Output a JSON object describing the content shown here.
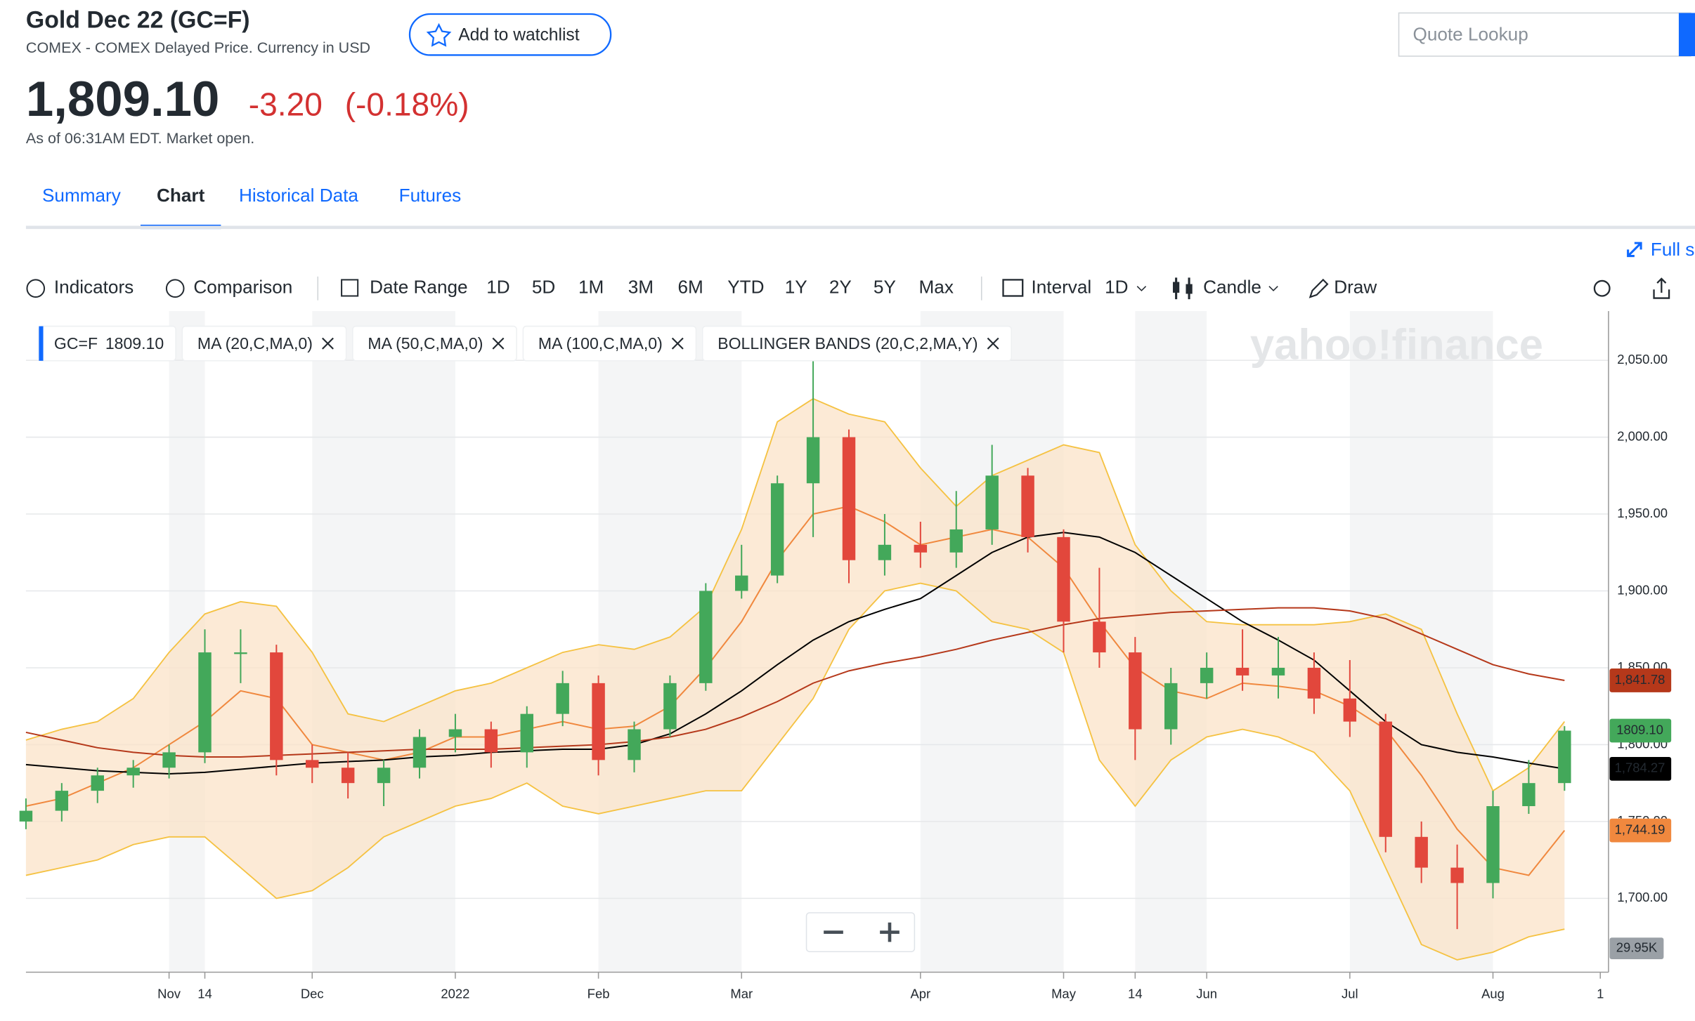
{
  "header": {
    "title": "Gold Dec 22 (GC=F)",
    "subtitle": "COMEX - COMEX Delayed Price. Currency in USD",
    "watchlist_button": "Add to watchlist",
    "search_placeholder": "Quote Lookup",
    "price": "1,809.10",
    "change": "-3.20",
    "change_percent": "(-0.18%)",
    "timestamp": "As of 06:31AM EDT. Market open."
  },
  "tabs": [
    "Summary",
    "Chart",
    "Historical Data",
    "Futures"
  ],
  "active_tab": "Chart",
  "toolbar": {
    "full_screen": "Full s",
    "indicators": "Indicators",
    "comparison": "Comparison",
    "date_range": "Date Range",
    "ranges": [
      "1D",
      "5D",
      "1M",
      "3M",
      "6M",
      "YTD",
      "1Y",
      "2Y",
      "5Y",
      "Max"
    ],
    "interval_label": "Interval",
    "interval": "1D",
    "chart_style": "Candle",
    "draw": "Draw"
  },
  "chart_data": {
    "type": "candlestick",
    "watermark": "yahoo!finance",
    "symbol": "GC=F",
    "price_label": "1809.10",
    "volume_label": "29.95K",
    "up_color": "#43a85a",
    "down_color": "#e2473c",
    "categories": [
      null,
      null,
      null,
      null,
      "Nov",
      "14",
      null,
      null,
      "Dec",
      null,
      null,
      null,
      "2022",
      null,
      null,
      null,
      "Feb",
      null,
      null,
      null,
      "Mar",
      null,
      null,
      null,
      null,
      "Apr",
      null,
      null,
      null,
      "May",
      null,
      "14",
      null,
      "Jun",
      null,
      null,
      null,
      "Jul",
      null,
      null,
      null,
      "Aug",
      null,
      null,
      "1"
    ],
    "open": [
      1750,
      1757,
      1770,
      1780,
      1785,
      1795,
      1860,
      1860,
      1790,
      1785,
      1775,
      1785,
      1805,
      1810,
      1795,
      1820,
      1840,
      1790,
      1810,
      1840,
      1900,
      1910,
      1970,
      2000,
      1920,
      1930,
      1925,
      1940,
      1975,
      1935,
      1880,
      1860,
      1810,
      1840,
      1850,
      1845,
      1850,
      1830,
      1815,
      1740,
      1720,
      1710,
      1760,
      1775,
      null
    ],
    "high": [
      1765,
      1775,
      1785,
      1790,
      1800,
      1875,
      1875,
      1865,
      1800,
      1795,
      1790,
      1810,
      1820,
      1815,
      1825,
      1848,
      1845,
      1815,
      1845,
      1905,
      1930,
      1975,
      2050,
      2005,
      1950,
      1945,
      1965,
      1995,
      1980,
      1940,
      1915,
      1870,
      1850,
      1860,
      1875,
      1870,
      1860,
      1855,
      1820,
      1750,
      1735,
      1770,
      1790,
      1812,
      null
    ],
    "low": [
      1745,
      1750,
      1762,
      1772,
      1778,
      1788,
      1840,
      1780,
      1775,
      1765,
      1760,
      1778,
      1795,
      1785,
      1785,
      1812,
      1780,
      1782,
      1805,
      1835,
      1895,
      1905,
      1935,
      1905,
      1910,
      1915,
      1915,
      1930,
      1925,
      1860,
      1850,
      1790,
      1800,
      1830,
      1835,
      1830,
      1820,
      1805,
      1730,
      1710,
      1680,
      1700,
      1755,
      1770,
      null
    ],
    "close": [
      1757,
      1770,
      1780,
      1785,
      1795,
      1860,
      1860,
      1790,
      1785,
      1775,
      1785,
      1805,
      1810,
      1795,
      1820,
      1840,
      1790,
      1810,
      1840,
      1900,
      1910,
      1970,
      2000,
      1920,
      1930,
      1925,
      1940,
      1975,
      1935,
      1880,
      1860,
      1810,
      1840,
      1850,
      1845,
      1850,
      1830,
      1815,
      1740,
      1720,
      1710,
      1760,
      1775,
      1809.1,
      null
    ],
    "series": [
      {
        "name": "MA (20,C,MA,0)",
        "color": "#f0883e",
        "value_label": "1,744.19",
        "values": [
          1760,
          1765,
          1775,
          1785,
          1800,
          1815,
          1835,
          1830,
          1800,
          1795,
          1790,
          1795,
          1805,
          1805,
          1810,
          1815,
          1810,
          1812,
          1825,
          1850,
          1880,
          1920,
          1950,
          1955,
          1945,
          1930,
          1935,
          1940,
          1935,
          1915,
          1880,
          1850,
          1835,
          1830,
          1840,
          1838,
          1835,
          1825,
          1810,
          1780,
          1745,
          1720,
          1715,
          1744.19,
          null
        ]
      },
      {
        "name": "MA (50,C,MA,0)",
        "color": "#000000",
        "value_label": "1,784.27",
        "values": [
          1787,
          1785,
          1783,
          1782,
          1781,
          1782,
          1784,
          1786,
          1788,
          1789,
          1790,
          1792,
          1793,
          1795,
          1796,
          1797,
          1797,
          1800,
          1807,
          1820,
          1835,
          1852,
          1868,
          1880,
          1888,
          1895,
          1910,
          1925,
          1935,
          1938,
          1935,
          1925,
          1910,
          1895,
          1880,
          1868,
          1855,
          1835,
          1815,
          1800,
          1795,
          1792,
          1788,
          1784.27,
          null
        ]
      },
      {
        "name": "MA (100,C,MA,0)",
        "color": "#b5381a",
        "value_label": "1,841.78",
        "values": [
          1808,
          1803,
          1798,
          1795,
          1793,
          1792,
          1792,
          1793,
          1794,
          1795,
          1796,
          1797,
          1797,
          1797,
          1798,
          1799,
          1800,
          1802,
          1805,
          1810,
          1818,
          1828,
          1840,
          1848,
          1853,
          1857,
          1862,
          1868,
          1873,
          1878,
          1882,
          1884,
          1886,
          1887,
          1888,
          1889,
          1889,
          1887,
          1882,
          1872,
          1862,
          1852,
          1846,
          1841.78,
          null
        ]
      }
    ],
    "bands": {
      "name": "BOLLINGER BANDS (20,C,2,MA,Y)",
      "color": "#f5c242",
      "fill": "#fbe3c8",
      "upper": [
        1803,
        1810,
        1815,
        1830,
        1860,
        1885,
        1893,
        1890,
        1860,
        1820,
        1815,
        1825,
        1835,
        1840,
        1850,
        1860,
        1865,
        1862,
        1870,
        1890,
        1940,
        2010,
        2025,
        2015,
        2010,
        1980,
        1955,
        1975,
        1985,
        1995,
        1990,
        1930,
        1900,
        1880,
        1878,
        1878,
        1878,
        1880,
        1885,
        1875,
        1820,
        1770,
        1785,
        1815,
        null
      ],
      "lower": [
        1715,
        1720,
        1725,
        1735,
        1740,
        1740,
        1720,
        1700,
        1705,
        1720,
        1740,
        1750,
        1760,
        1765,
        1775,
        1760,
        1755,
        1760,
        1765,
        1770,
        1770,
        1800,
        1830,
        1875,
        1900,
        1905,
        1900,
        1880,
        1875,
        1860,
        1790,
        1760,
        1790,
        1805,
        1810,
        1805,
        1795,
        1770,
        1720,
        1670,
        1660,
        1665,
        1675,
        1680,
        null
      ]
    },
    "ylim": [
      1652,
      2082
    ],
    "yticks": [
      {
        "value": 1700,
        "label": "1,700.00"
      },
      {
        "value": 1750,
        "label": "1,750.00"
      },
      {
        "value": 1800,
        "label": "1,800.00"
      },
      {
        "value": 1850,
        "label": "1,850.00"
      },
      {
        "value": 1900,
        "label": "1,900.00"
      },
      {
        "value": 1950,
        "label": "1,950.00"
      },
      {
        "value": 2000,
        "label": "2,000.00"
      },
      {
        "value": 2050,
        "label": "2,050.00"
      }
    ],
    "grid": true
  }
}
